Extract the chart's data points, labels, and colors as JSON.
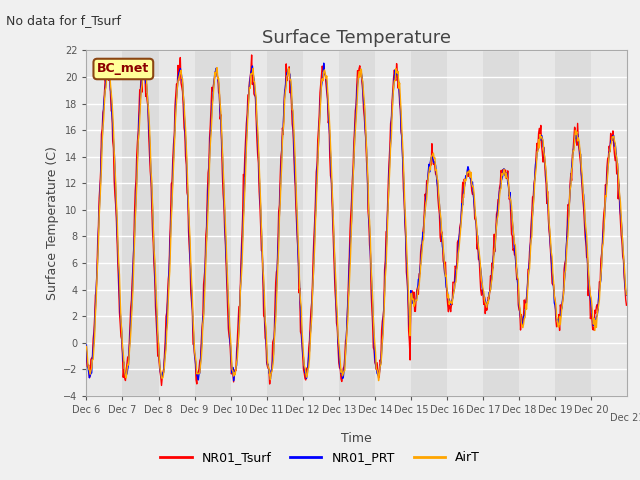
{
  "title": "Surface Temperature",
  "subtitle": "No data for f_Tsurf",
  "ylabel": "Surface Temperature (C)",
  "xlabel": "Time",
  "station_label": "BC_met",
  "ylim": [
    -4,
    22
  ],
  "yticks": [
    -4,
    -2,
    0,
    2,
    4,
    6,
    8,
    10,
    12,
    14,
    16,
    18,
    20,
    22
  ],
  "n_days": 15,
  "xtick_labels": [
    "Dec 6",
    "Dec 7",
    "Dec 8",
    "Dec 9",
    "Dec 10",
    "Dec 11",
    "Dec 12",
    "Dec 13",
    "Dec 14",
    "Dec 15",
    "Dec 16",
    "Dec 17",
    "Dec 18",
    "Dec 19",
    "Dec 20",
    "Dec 21"
  ],
  "colors": {
    "NR01_Tsurf": "#ff0000",
    "NR01_PRT": "#0000ff",
    "AirT": "#ffa500",
    "fig_bg": "#f0f0f0",
    "band_even": "#e8e8e8",
    "band_odd": "#dcdcdc",
    "grid": "#ffffff"
  },
  "linewidth": 1.0
}
